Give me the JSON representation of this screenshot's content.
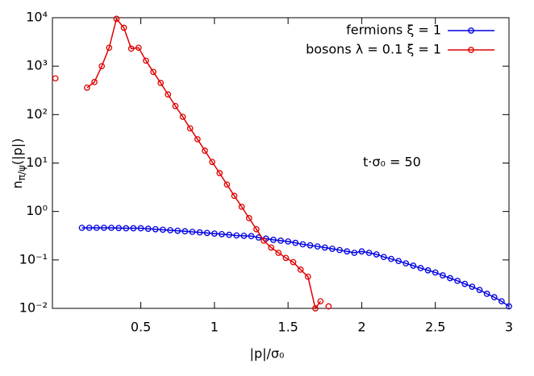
{
  "chart_data": {
    "type": "line",
    "log_y": true,
    "xlabel": "|p|/σ₀",
    "ylabel": [
      "n",
      "π/ψ",
      "(|p|)"
    ],
    "annotation": "t·σ₀ = 50",
    "xlim": [
      -0.1,
      3
    ],
    "ylim": [
      0.01,
      10000
    ],
    "xticks": [
      0.5,
      1,
      1.5,
      2,
      2.5,
      3
    ],
    "yticks": [
      {
        "value": 0.01,
        "label": "10⁻²"
      },
      {
        "value": 0.1,
        "label": "10⁻¹"
      },
      {
        "value": 1,
        "label": "10⁰"
      },
      {
        "value": 10,
        "label": "10¹"
      },
      {
        "value": 100,
        "label": "10²"
      },
      {
        "value": 1000,
        "label": "10³"
      },
      {
        "value": 10000,
        "label": "10⁴"
      }
    ],
    "legend": "top-right",
    "series": [
      {
        "name": "fermions ξ = 1",
        "color": "#0000e0",
        "x": [
          0.1,
          0.15,
          0.2,
          0.25,
          0.3,
          0.35,
          0.4,
          0.45,
          0.5,
          0.55,
          0.6,
          0.65,
          0.7,
          0.75,
          0.8,
          0.85,
          0.9,
          0.95,
          1.0,
          1.05,
          1.1,
          1.15,
          1.2,
          1.25,
          1.3,
          1.35,
          1.4,
          1.45,
          1.5,
          1.55,
          1.6,
          1.65,
          1.7,
          1.75,
          1.8,
          1.85,
          1.9,
          1.95,
          2.0,
          2.05,
          2.1,
          2.15,
          2.2,
          2.25,
          2.3,
          2.35,
          2.4,
          2.45,
          2.5,
          2.55,
          2.6,
          2.65,
          2.7,
          2.75,
          2.8,
          2.85,
          2.9,
          2.95,
          3.0
        ],
        "values": [
          0.46,
          0.46,
          0.46,
          0.46,
          0.46,
          0.455,
          0.45,
          0.45,
          0.45,
          0.44,
          0.43,
          0.42,
          0.41,
          0.4,
          0.39,
          0.38,
          0.37,
          0.36,
          0.35,
          0.34,
          0.33,
          0.32,
          0.315,
          0.31,
          0.29,
          0.275,
          0.26,
          0.25,
          0.24,
          0.225,
          0.21,
          0.2,
          0.19,
          0.18,
          0.17,
          0.16,
          0.15,
          0.14,
          0.15,
          0.14,
          0.13,
          0.115,
          0.105,
          0.095,
          0.085,
          0.076,
          0.068,
          0.061,
          0.055,
          0.048,
          0.042,
          0.037,
          0.032,
          0.028,
          0.024,
          0.02,
          0.017,
          0.014,
          0.011
        ]
      },
      {
        "name": "bosons λ = 0.1 ξ = 1",
        "color": "#e00000",
        "x": [
          -0.08,
          0.03,
          0.135,
          0.185,
          0.235,
          0.285,
          0.335,
          0.385,
          0.435,
          0.485,
          0.535,
          0.585,
          0.635,
          0.685,
          0.735,
          0.785,
          0.835,
          0.885,
          0.935,
          0.985,
          1.035,
          1.085,
          1.135,
          1.185,
          1.235,
          1.285,
          1.335,
          1.385,
          1.435,
          1.485,
          1.535,
          1.585,
          1.635,
          1.685,
          1.72,
          1.745,
          1.775
        ],
        "values": [
          560,
          null,
          360,
          470,
          1000,
          2400,
          9500,
          6200,
          2300,
          2400,
          1300,
          760,
          450,
          260,
          150,
          90,
          52,
          31,
          18,
          10.5,
          6.2,
          3.6,
          2.1,
          1.25,
          0.73,
          0.43,
          0.25,
          0.18,
          0.14,
          0.11,
          0.09,
          0.063,
          0.045,
          0.01,
          0.014,
          null,
          0.011
        ]
      }
    ]
  }
}
